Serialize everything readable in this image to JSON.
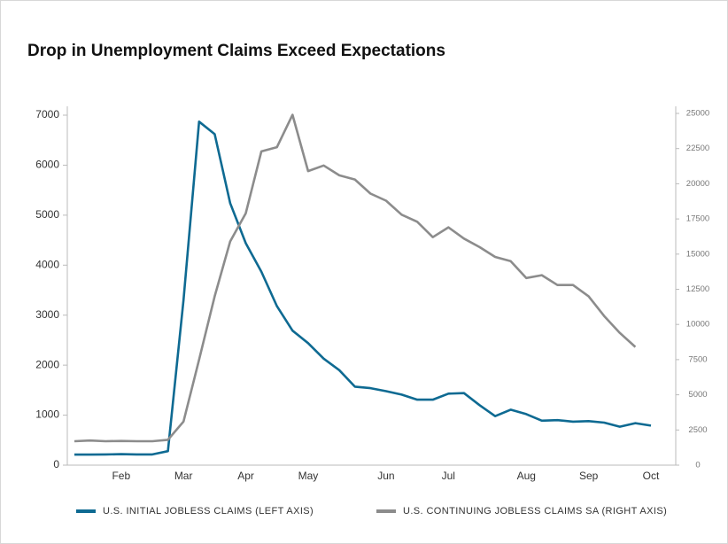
{
  "chart_data": {
    "type": "line",
    "title": "Drop in Unemployment Claims Exceed Expectations",
    "categories": [
      null,
      null,
      null,
      "Feb",
      null,
      null,
      null,
      "Mar",
      null,
      null,
      null,
      "Apr",
      null,
      null,
      null,
      "May",
      null,
      null,
      null,
      null,
      "Jun",
      null,
      null,
      null,
      "Jul",
      null,
      null,
      null,
      null,
      "Aug",
      null,
      null,
      null,
      "Sep",
      null,
      null,
      null,
      "Oct"
    ],
    "series": [
      {
        "name": "U.S. INITIAL JOBLESS CLAIMS (LEFT AXIS)",
        "color": "#0e6a92",
        "values": [
          210,
          210,
          215,
          220,
          215,
          215,
          280,
          3300,
          6870,
          6620,
          5240,
          4440,
          3870,
          3180,
          2690,
          2440,
          2130,
          1900,
          1570,
          1540,
          1480,
          1410,
          1310,
          1310,
          1430,
          1440,
          1200,
          980,
          1110,
          1020,
          890,
          900,
          870,
          880,
          850,
          770,
          840,
          790
        ]
      },
      {
        "name": "U.S. CONTINUING JOBLESS CLAIMS SA (RIGHT AXIS)",
        "color": "#8c8c8c",
        "axis": "y2",
        "values": [
          1700,
          1750,
          1700,
          1720,
          1700,
          1700,
          1800,
          3100,
          7500,
          12000,
          15900,
          17900,
          22300,
          22600,
          24900,
          20900,
          21300,
          20600,
          20300,
          19300,
          18800,
          17800,
          17300,
          16200,
          16900,
          16100,
          15500,
          14800,
          14500,
          13300,
          13500,
          12800,
          12800,
          12000,
          10600,
          9400,
          8400,
          null
        ]
      }
    ],
    "ylim": [
      0,
      7000
    ],
    "yticks": [
      0,
      1000,
      2000,
      3000,
      4000,
      5000,
      6000,
      7000
    ],
    "y2lim": [
      0,
      25000
    ],
    "y2ticks": [
      0,
      2500,
      5000,
      7500,
      10000,
      12500,
      15000,
      17500,
      20000,
      22500,
      25000
    ],
    "legend": "bottom"
  }
}
